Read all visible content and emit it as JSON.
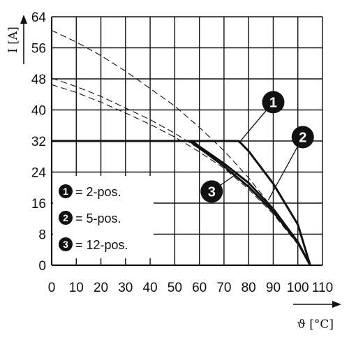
{
  "chart_data": {
    "type": "line",
    "xlabel": "ϑ [°C]",
    "ylabel": "I [A]",
    "xlim": [
      0,
      110
    ],
    "ylim": [
      0,
      64
    ],
    "xticks": [
      "0",
      "10",
      "20",
      "30",
      "40",
      "50",
      "60",
      "70",
      "80",
      "90",
      "100",
      "110"
    ],
    "yticks": [
      "0",
      "8",
      "16",
      "24",
      "32",
      "40",
      "48",
      "56",
      "64"
    ],
    "grid": true,
    "legend_position": "lower-left",
    "legend": [
      {
        "number": "1",
        "label": "= 2-pos."
      },
      {
        "number": "2",
        "label": "= 5-pos."
      },
      {
        "number": "3",
        "label": "= 12-pos."
      }
    ],
    "series": [
      {
        "name": "1",
        "style": "dashed",
        "x": [
          0,
          10,
          20,
          30,
          40,
          50,
          60,
          70,
          80,
          90,
          100,
          105
        ],
        "y": [
          60.5,
          57.5,
          54.0,
          50.0,
          45.5,
          41.0,
          35.5,
          29.5,
          22.5,
          14.5,
          6.0,
          0
        ]
      },
      {
        "name": "2",
        "style": "dashed",
        "x": [
          0,
          10,
          20,
          30,
          40,
          50,
          60,
          70,
          80,
          90,
          100,
          105
        ],
        "y": [
          48.2,
          46.0,
          43.5,
          40.5,
          37.5,
          34.0,
          30.0,
          25.5,
          20.0,
          13.5,
          5.5,
          0
        ]
      },
      {
        "name": "3",
        "style": "dashed",
        "x": [
          0,
          10,
          20,
          30,
          40,
          50,
          60,
          70,
          80,
          90,
          100,
          105
        ],
        "y": [
          46.5,
          44.5,
          42.0,
          39.2,
          36.3,
          33.0,
          29.2,
          25.0,
          19.6,
          13.2,
          5.4,
          0
        ]
      },
      {
        "name": "1",
        "style": "solid",
        "x": [
          0,
          76,
          80,
          90,
          100,
          105
        ],
        "y": [
          32,
          32,
          29.4,
          21.0,
          10.5,
          0
        ]
      },
      {
        "name": "2",
        "style": "solid",
        "x": [
          0,
          57,
          60,
          70,
          80,
          90,
          100,
          105
        ],
        "y": [
          32,
          32,
          30.6,
          26.2,
          21.2,
          14.5,
          6.0,
          0
        ]
      },
      {
        "name": "3",
        "style": "solid",
        "x": [
          0,
          56,
          60,
          70,
          80,
          90,
          100,
          105
        ],
        "y": [
          32,
          32,
          30.2,
          25.5,
          20.2,
          13.8,
          5.8,
          0
        ]
      }
    ],
    "annotations": [
      {
        "label": "1",
        "x": 90,
        "y": 42
      },
      {
        "label": "2",
        "x": 102,
        "y": 33
      },
      {
        "label": "3",
        "x": 65,
        "y": 19
      }
    ]
  }
}
